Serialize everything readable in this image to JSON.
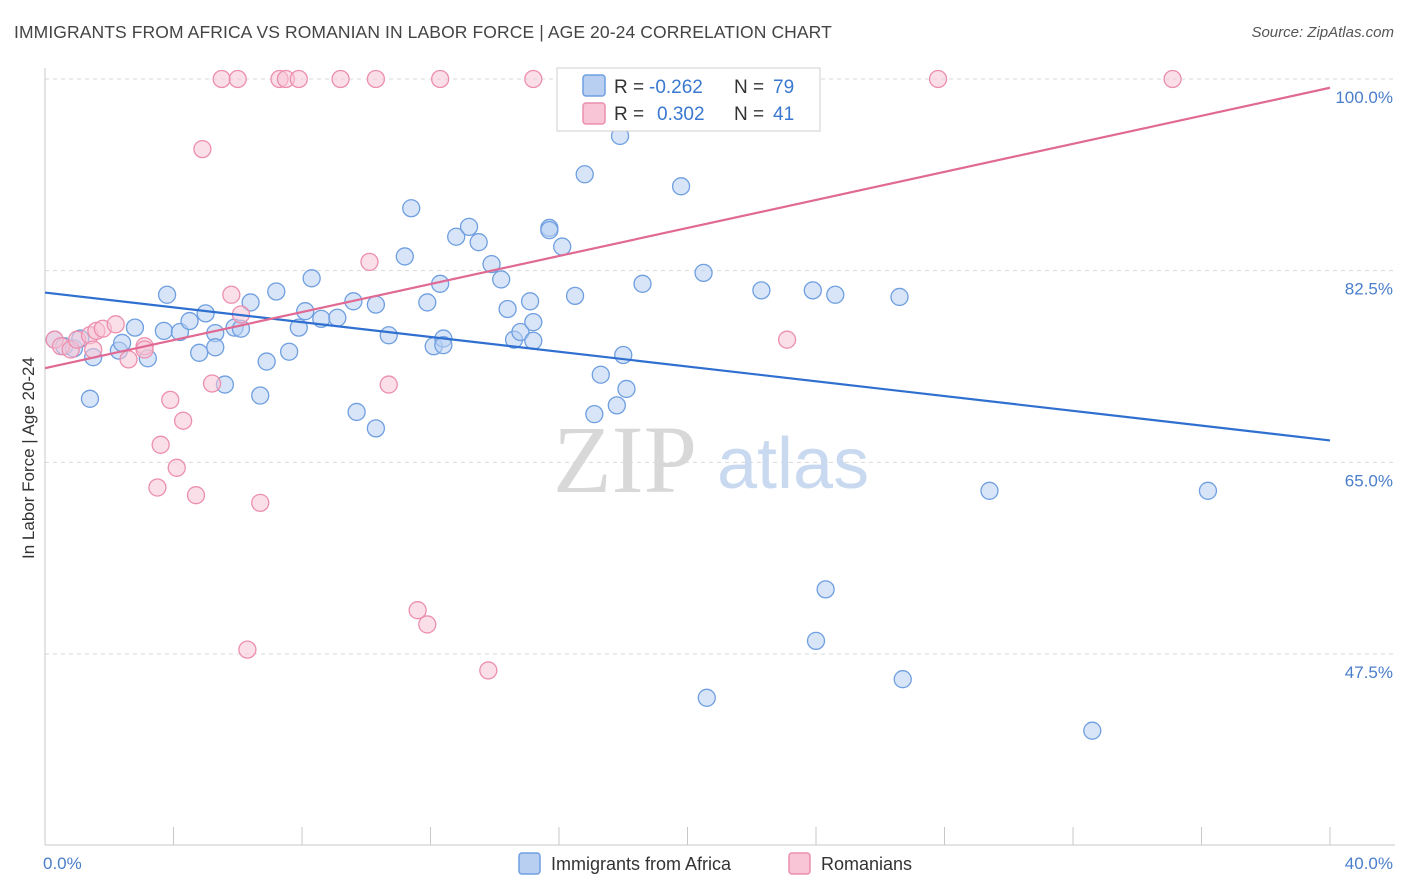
{
  "header": {
    "title": "IMMIGRANTS FROM AFRICA VS ROMANIAN IN LABOR FORCE | AGE 20-24 CORRELATION CHART",
    "source": "Source: ZipAtlas.com"
  },
  "watermark": {
    "zip": "ZIP",
    "atlas": "atlas"
  },
  "colors": {
    "blue": "#6f9fe0",
    "blue_fill": "#b8cff2",
    "blue_line": "#2f6fd0",
    "pink": "#ec8fae",
    "pink_fill": "#f7c5d6",
    "pink_line": "#e06a93",
    "tick_label": "#4a7ecb",
    "grid": "#d9d9d9"
  },
  "legend": {
    "rows": [
      {
        "r_label": "R =",
        "r_value": "-0.262",
        "n_label": "N =",
        "n_value": "79"
      },
      {
        "r_label": "R =",
        "r_value": "0.302",
        "n_label": "N =",
        "n_value": "41"
      }
    ]
  },
  "chart_data": {
    "type": "scatter",
    "title": "IMMIGRANTS FROM AFRICA VS ROMANIAN IN LABOR FORCE | AGE 20-24 CORRELATION CHART",
    "xlabel": "",
    "ylabel": "In Labor Force | Age 20-24",
    "xlim": [
      0,
      40
    ],
    "ylim": [
      30,
      102
    ],
    "x_ticks": [
      0,
      40
    ],
    "x_tick_labels": [
      "0.0%",
      "40.0%"
    ],
    "y_ticks": [
      47.5,
      65.0,
      82.5,
      100.0
    ],
    "y_tick_labels": [
      "47.5%",
      "65.0%",
      "82.5%",
      "100.0%"
    ],
    "grid": true,
    "legend_placement": "top-center",
    "series": [
      {
        "name": "Immigrants from Africa",
        "color": "#6f9fe0",
        "trend": {
          "x": [
            0,
            40
          ],
          "y": [
            80.5,
            67.0
          ]
        },
        "points": [
          [
            0.3,
            76.2
          ],
          [
            0.6,
            75.6
          ],
          [
            0.9,
            75.4
          ],
          [
            1.1,
            76.3
          ],
          [
            1.4,
            70.8
          ],
          [
            1.5,
            74.6
          ],
          [
            2.3,
            75.2
          ],
          [
            2.4,
            75.9
          ],
          [
            2.8,
            77.3
          ],
          [
            3.2,
            74.5
          ],
          [
            3.7,
            77.0
          ],
          [
            3.8,
            80.3
          ],
          [
            4.2,
            76.9
          ],
          [
            4.5,
            77.9
          ],
          [
            4.8,
            75.0
          ],
          [
            5.0,
            78.6
          ],
          [
            5.3,
            76.8
          ],
          [
            5.3,
            75.5
          ],
          [
            5.6,
            72.1
          ],
          [
            5.9,
            77.3
          ],
          [
            6.1,
            77.2
          ],
          [
            6.4,
            79.6
          ],
          [
            6.7,
            71.1
          ],
          [
            6.9,
            74.2
          ],
          [
            7.2,
            80.6
          ],
          [
            7.6,
            75.1
          ],
          [
            7.9,
            77.3
          ],
          [
            8.1,
            78.8
          ],
          [
            8.3,
            81.8
          ],
          [
            8.6,
            78.1
          ],
          [
            9.1,
            78.2
          ],
          [
            9.6,
            79.7
          ],
          [
            9.7,
            69.6
          ],
          [
            10.3,
            79.4
          ],
          [
            10.3,
            68.1
          ],
          [
            10.7,
            76.6
          ],
          [
            11.2,
            83.8
          ],
          [
            11.4,
            88.2
          ],
          [
            11.9,
            79.6
          ],
          [
            12.1,
            75.6
          ],
          [
            12.3,
            81.3
          ],
          [
            12.4,
            76.3
          ],
          [
            12.4,
            75.7
          ],
          [
            12.8,
            85.6
          ],
          [
            13.2,
            86.5
          ],
          [
            13.5,
            85.1
          ],
          [
            13.9,
            83.1
          ],
          [
            14.2,
            81.7
          ],
          [
            14.4,
            79.0
          ],
          [
            14.6,
            76.2
          ],
          [
            14.8,
            76.9
          ],
          [
            15.2,
            77.8
          ],
          [
            15.1,
            79.7
          ],
          [
            15.2,
            76.1
          ],
          [
            15.7,
            86.4
          ],
          [
            15.7,
            86.2
          ],
          [
            16.1,
            84.7
          ],
          [
            16.5,
            80.2
          ],
          [
            16.8,
            91.3
          ],
          [
            17.1,
            69.4
          ],
          [
            17.3,
            73.0
          ],
          [
            17.8,
            70.2
          ],
          [
            17.9,
            94.8
          ],
          [
            18.1,
            71.7
          ],
          [
            18.0,
            74.8
          ],
          [
            18.6,
            81.3
          ],
          [
            19.8,
            90.2
          ],
          [
            20.5,
            82.3
          ],
          [
            20.6,
            43.5
          ],
          [
            22.3,
            80.7
          ],
          [
            23.9,
            80.7
          ],
          [
            24.0,
            48.7
          ],
          [
            24.3,
            53.4
          ],
          [
            24.6,
            80.3
          ],
          [
            26.6,
            80.1
          ],
          [
            26.7,
            45.2
          ],
          [
            29.4,
            62.4
          ],
          [
            32.6,
            40.5
          ],
          [
            36.2,
            62.4
          ]
        ]
      },
      {
        "name": "Romanians",
        "color": "#ec8fae",
        "trend": {
          "x": [
            0,
            40
          ],
          "y": [
            73.6,
            99.2
          ]
        },
        "points": [
          [
            0.3,
            76.2
          ],
          [
            0.5,
            75.6
          ],
          [
            0.8,
            75.3
          ],
          [
            1.0,
            76.2
          ],
          [
            1.4,
            76.6
          ],
          [
            1.5,
            75.3
          ],
          [
            1.6,
            77.0
          ],
          [
            1.8,
            77.2
          ],
          [
            2.2,
            77.6
          ],
          [
            2.6,
            74.4
          ],
          [
            3.1,
            75.6
          ],
          [
            3.1,
            75.3
          ],
          [
            3.5,
            62.7
          ],
          [
            3.6,
            66.6
          ],
          [
            3.9,
            70.7
          ],
          [
            4.1,
            64.5
          ],
          [
            4.3,
            68.8
          ],
          [
            4.7,
            62.0
          ],
          [
            4.9,
            93.6
          ],
          [
            5.2,
            72.2
          ],
          [
            5.5,
            100.0
          ],
          [
            5.8,
            80.3
          ],
          [
            6.0,
            100.0
          ],
          [
            6.1,
            78.5
          ],
          [
            6.3,
            47.9
          ],
          [
            6.7,
            61.3
          ],
          [
            7.3,
            100.0
          ],
          [
            7.5,
            100.0
          ],
          [
            7.9,
            100.0
          ],
          [
            9.2,
            100.0
          ],
          [
            10.1,
            83.3
          ],
          [
            10.3,
            100.0
          ],
          [
            10.7,
            72.1
          ],
          [
            11.6,
            51.5
          ],
          [
            11.9,
            50.2
          ],
          [
            12.3,
            100.0
          ],
          [
            13.8,
            46.0
          ],
          [
            15.2,
            100.0
          ],
          [
            23.1,
            76.2
          ],
          [
            27.8,
            100.0
          ],
          [
            35.1,
            100.0
          ]
        ]
      }
    ]
  },
  "bottom_legend": {
    "items": [
      {
        "label": "Immigrants from Africa"
      },
      {
        "label": "Romanians"
      }
    ]
  }
}
